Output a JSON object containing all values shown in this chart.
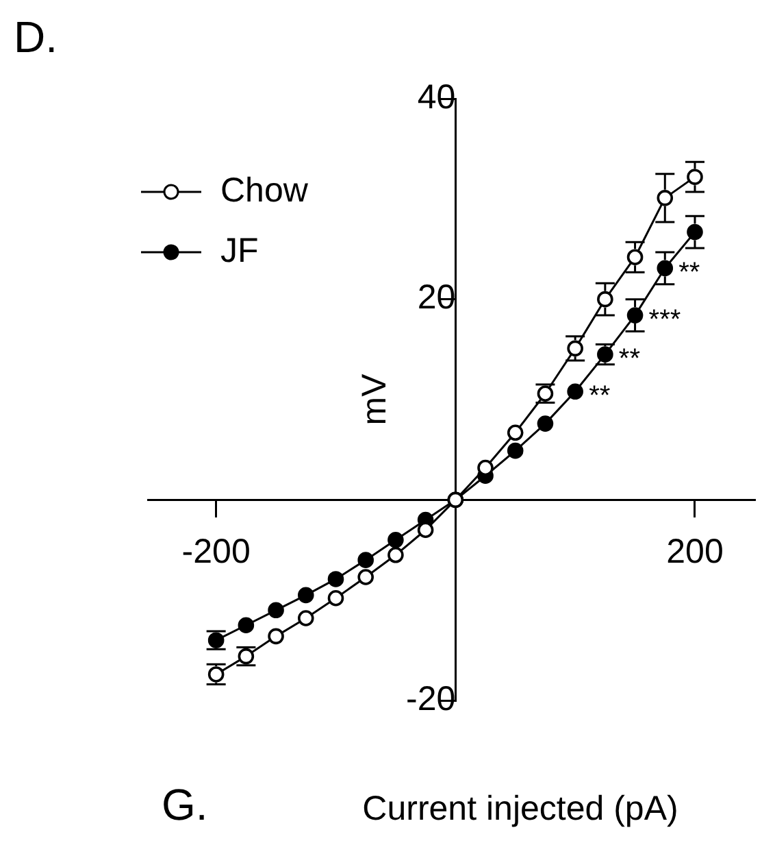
{
  "chart_data": {
    "type": "line",
    "xlabel": "Current injected (pA)",
    "ylabel": "mV",
    "x": [
      -200,
      -175,
      -150,
      -125,
      -100,
      -75,
      -50,
      -25,
      0,
      25,
      50,
      75,
      100,
      125,
      150,
      175,
      200
    ],
    "series": [
      {
        "name": "Chow",
        "color": "#ffffff",
        "values": [
          -17.4,
          -15.6,
          -13.6,
          -11.8,
          -9.8,
          -7.7,
          -5.5,
          -3.0,
          0,
          3.2,
          6.7,
          10.6,
          15.1,
          20.0,
          24.2,
          30.1,
          32.2
        ],
        "errors": [
          1.0,
          0.9,
          null,
          null,
          null,
          null,
          null,
          null,
          null,
          null,
          null,
          0.9,
          1.2,
          1.6,
          1.5,
          2.4,
          1.5
        ]
      },
      {
        "name": "JF",
        "color": "#000000",
        "values": [
          -14.0,
          -12.5,
          -11.0,
          -9.5,
          -7.9,
          -6.0,
          -4.0,
          -2.0,
          0,
          2.4,
          4.9,
          7.6,
          10.8,
          14.5,
          18.4,
          23.1,
          26.7
        ],
        "errors": [
          0.9,
          null,
          null,
          null,
          null,
          null,
          null,
          null,
          null,
          null,
          null,
          null,
          null,
          1.0,
          1.6,
          1.6,
          1.6
        ]
      }
    ],
    "xlim": [
      -257,
      250
    ],
    "ylim": [
      -20,
      40
    ],
    "xticks": [
      -200,
      200
    ],
    "yticks": [
      -20,
      20,
      40
    ],
    "grid": false,
    "marker": "circle",
    "legend": "top left",
    "line_style": "solid",
    "annotations": [
      {
        "text": "**",
        "x": 100,
        "y": 10.8
      },
      {
        "text": "**",
        "x": 125,
        "y": 14.5
      },
      {
        "text": "***",
        "x": 150,
        "y": 18.4
      },
      {
        "text": "**",
        "x": 175,
        "y": 23.1
      },
      "D.",
      "G."
    ]
  }
}
